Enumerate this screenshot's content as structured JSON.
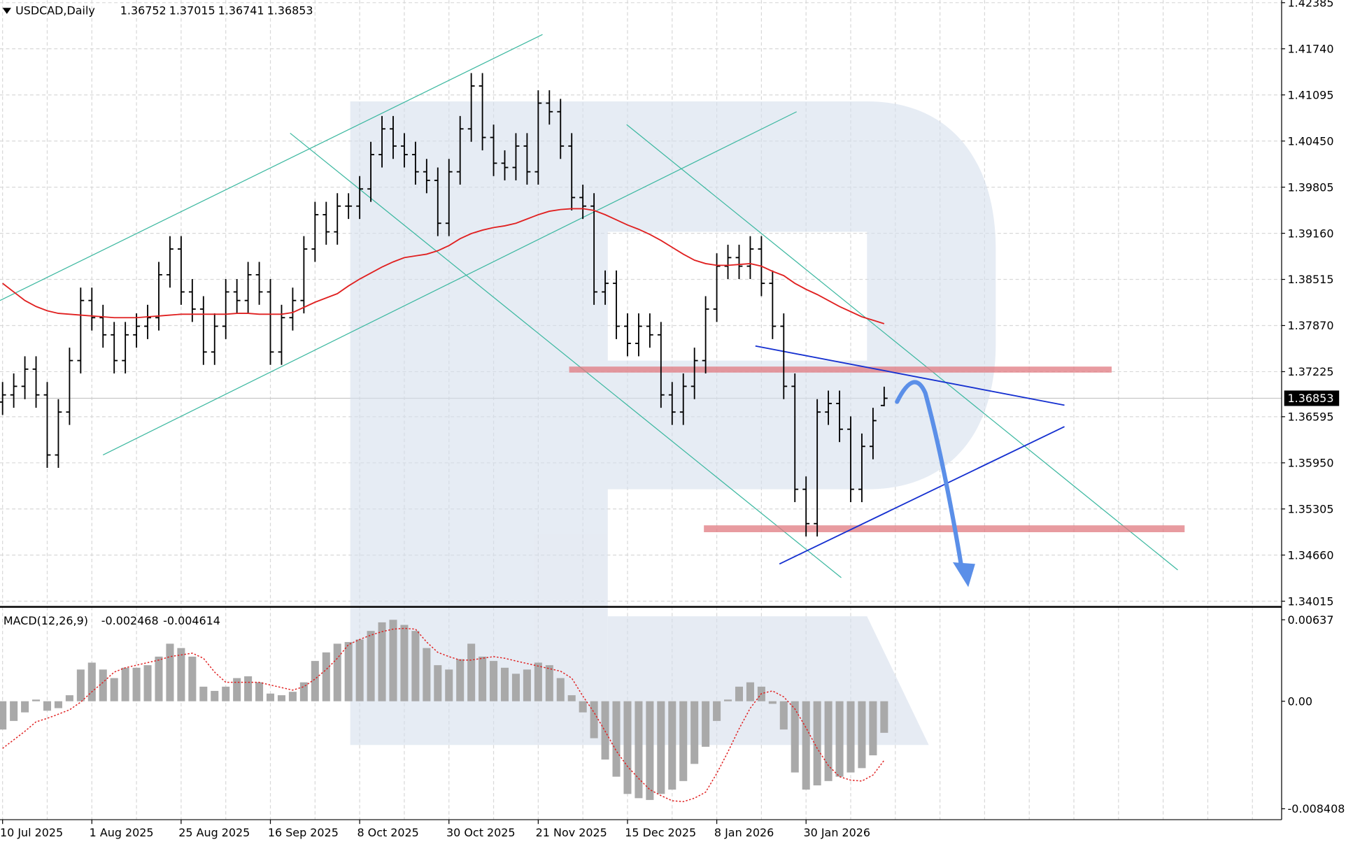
{
  "chart_data": [
    {
      "type": "ohlc",
      "symbol": "USDCAD,Daily",
      "categories": [
        "10 Jul 2025",
        null,
        null,
        null,
        null,
        null,
        null,
        null,
        "1 Aug 2025",
        null,
        null,
        null,
        null,
        null,
        null,
        null,
        "25 Aug 2025",
        null,
        null,
        null,
        null,
        null,
        null,
        null,
        "16 Sep 2025",
        null,
        null,
        null,
        null,
        null,
        null,
        null,
        "8 Oct 2025",
        null,
        null,
        null,
        null,
        null,
        null,
        null,
        "30 Oct 2025",
        null,
        null,
        null,
        null,
        null,
        null,
        null,
        "21 Nov 2025",
        null,
        null,
        null,
        null,
        null,
        null,
        null,
        "15 Dec 2025",
        null,
        null,
        null,
        null,
        null,
        null,
        null,
        "8 Jan 2026",
        null,
        null,
        null,
        null,
        null,
        null,
        null,
        "30 Jan 2026",
        null,
        null,
        null,
        null,
        null,
        null,
        null
      ],
      "open": [
        1.368,
        1.369,
        1.3702,
        1.3726,
        1.369,
        1.3606,
        1.3666,
        1.3738,
        1.3822,
        1.3798,
        1.3774,
        1.3738,
        1.3774,
        1.3786,
        1.3798,
        1.3858,
        1.3894,
        1.3834,
        1.381,
        1.375,
        1.3786,
        1.3834,
        1.3822,
        1.3858,
        1.3834,
        1.375,
        1.3798,
        1.3822,
        1.3894,
        1.3942,
        1.3918,
        1.3954,
        1.3954,
        1.3978,
        1.4026,
        1.4062,
        1.4038,
        1.4026,
        1.4002,
        1.399,
        1.393,
        1.4002,
        1.4062,
        1.4122,
        1.405,
        1.4014,
        1.4008,
        1.4038,
        1.4002,
        1.4098,
        1.4086,
        1.4038,
        1.3966,
        1.3954,
        1.3834,
        1.3846,
        1.3786,
        1.3762,
        1.3786,
        1.3774,
        1.369,
        1.3666,
        1.3702,
        1.3738,
        1.381,
        1.387,
        1.3882,
        1.387,
        1.3894,
        1.3846,
        1.3786,
        1.3702,
        1.3558,
        1.351,
        1.3666,
        1.3678,
        1.3642,
        1.3558,
        1.3618,
        1.36752
      ],
      "high": [
        1.3708,
        1.372,
        1.3744,
        1.3744,
        1.3708,
        1.3684,
        1.3756,
        1.384,
        1.384,
        1.3816,
        1.3792,
        1.3792,
        1.3804,
        1.3816,
        1.3876,
        1.3912,
        1.3912,
        1.3852,
        1.3828,
        1.3804,
        1.3852,
        1.3852,
        1.3876,
        1.3876,
        1.3852,
        1.3816,
        1.384,
        1.3912,
        1.396,
        1.396,
        1.3972,
        1.3972,
        1.3996,
        1.4044,
        1.408,
        1.408,
        1.4056,
        1.4044,
        1.402,
        1.4008,
        1.402,
        1.408,
        1.414,
        1.414,
        1.4068,
        1.4032,
        1.4056,
        1.4056,
        1.4116,
        1.4116,
        1.4104,
        1.4056,
        1.3984,
        1.3972,
        1.3864,
        1.3864,
        1.3804,
        1.3804,
        1.3804,
        1.3792,
        1.3708,
        1.372,
        1.3756,
        1.3828,
        1.3888,
        1.39,
        1.39,
        1.3912,
        1.3912,
        1.3864,
        1.3804,
        1.372,
        1.3576,
        1.3684,
        1.3696,
        1.3696,
        1.366,
        1.3636,
        1.3672,
        1.37015
      ],
      "low": [
        1.3662,
        1.3672,
        1.3684,
        1.3672,
        1.3588,
        1.3588,
        1.3648,
        1.372,
        1.378,
        1.3756,
        1.372,
        1.372,
        1.3756,
        1.3768,
        1.378,
        1.384,
        1.3816,
        1.3792,
        1.3732,
        1.3732,
        1.3768,
        1.3804,
        1.3804,
        1.3816,
        1.3732,
        1.3732,
        1.378,
        1.3804,
        1.3876,
        1.39,
        1.39,
        1.3936,
        1.3936,
        1.396,
        1.4008,
        1.402,
        1.4008,
        1.3984,
        1.3972,
        1.3912,
        1.3912,
        1.3984,
        1.4044,
        1.4032,
        1.3996,
        1.399,
        1.399,
        1.3984,
        1.3984,
        1.4068,
        1.402,
        1.3948,
        1.3936,
        1.3816,
        1.3816,
        1.3768,
        1.3744,
        1.3744,
        1.3756,
        1.3672,
        1.3648,
        1.3648,
        1.3684,
        1.372,
        1.3792,
        1.3852,
        1.3852,
        1.3852,
        1.3828,
        1.3768,
        1.3684,
        1.354,
        1.3492,
        1.3492,
        1.3648,
        1.3624,
        1.354,
        1.354,
        1.36,
        1.36741
      ],
      "close": [
        1.369,
        1.3702,
        1.3726,
        1.369,
        1.3606,
        1.3666,
        1.3738,
        1.3822,
        1.3798,
        1.3774,
        1.3738,
        1.3774,
        1.3786,
        1.3798,
        1.3858,
        1.3894,
        1.3834,
        1.381,
        1.375,
        1.3786,
        1.3834,
        1.3822,
        1.3858,
        1.3834,
        1.375,
        1.3798,
        1.3822,
        1.3894,
        1.3942,
        1.3918,
        1.3954,
        1.3954,
        1.3978,
        1.4026,
        1.4062,
        1.4038,
        1.4026,
        1.4002,
        1.399,
        1.393,
        1.4002,
        1.4062,
        1.4122,
        1.405,
        1.4014,
        1.4008,
        1.4038,
        1.4002,
        1.4098,
        1.4086,
        1.4038,
        1.3966,
        1.3954,
        1.3834,
        1.3846,
        1.3786,
        1.3762,
        1.3786,
        1.3774,
        1.369,
        1.3666,
        1.3702,
        1.3738,
        1.381,
        1.387,
        1.3882,
        1.387,
        1.3894,
        1.3846,
        1.3786,
        1.3702,
        1.3558,
        1.351,
        1.3666,
        1.3678,
        1.3642,
        1.3558,
        1.3618,
        1.3654,
        1.36853
      ],
      "color": "#000000",
      "ma": {
        "color": "#e02020",
        "values": [
          1.3846,
          1.3834,
          1.3822,
          1.38136,
          1.38076,
          1.3804,
          1.38028,
          1.38016,
          1.38004,
          1.37992,
          1.3798,
          1.3798,
          1.3798,
          1.37992,
          1.38004,
          1.38016,
          1.38028,
          1.38028,
          1.38028,
          1.38028,
          1.38028,
          1.3804,
          1.3804,
          1.38028,
          1.38028,
          1.38028,
          1.38052,
          1.38124,
          1.38196,
          1.38256,
          1.38316,
          1.38424,
          1.3852,
          1.38604,
          1.38688,
          1.3876,
          1.3882,
          1.38844,
          1.38868,
          1.38916,
          1.38988,
          1.39084,
          1.39156,
          1.39204,
          1.3924,
          1.39264,
          1.393,
          1.3936,
          1.3942,
          1.39468,
          1.39492,
          1.39504,
          1.39504,
          1.3948,
          1.3942,
          1.39348,
          1.39276,
          1.39216,
          1.39144,
          1.3906,
          1.38964,
          1.38868,
          1.38784,
          1.38736,
          1.38712,
          1.38712,
          1.38724,
          1.38736,
          1.387,
          1.38628,
          1.38568,
          1.3846,
          1.38376,
          1.38304,
          1.3822,
          1.38136,
          1.38064,
          1.37992,
          1.37944,
          1.37896
        ]
      },
      "ylim": [
        1.3396,
        1.4242
      ],
      "yticks": [
        1.42385,
        {
          "value": 1.4174,
          "label": "1.41740"
        },
        1.41095,
        {
          "value": 1.4045,
          "label": "1.40450"
        },
        1.39805,
        {
          "value": 1.3916,
          "label": "1.39160"
        },
        1.38515,
        {
          "value": 1.3787,
          "label": "1.37870"
        },
        1.37225,
        1.36595,
        {
          "value": 1.3595,
          "label": "1.35950"
        },
        1.35305,
        {
          "value": 1.3466,
          "label": "1.34660"
        },
        1.34015
      ],
      "grid": true
    },
    {
      "type": "macd",
      "title": "MACD(12,26,9)",
      "histogram": {
        "color": "#a9a9a9",
        "values": [
          -0.00221,
          -0.00154,
          -0.00087,
          0.00013,
          -0.00074,
          -0.00054,
          0.00047,
          0.00248,
          0.00302,
          0.00248,
          0.00181,
          0.00262,
          0.00262,
          0.00282,
          0.00349,
          0.0045,
          0.00416,
          0.00349,
          0.00114,
          0.00081,
          0.00114,
          0.00181,
          0.00195,
          0.00148,
          0.0006,
          0.00047,
          0.00074,
          0.00148,
          0.00315,
          0.00382,
          0.0045,
          0.00463,
          0.00483,
          0.0055,
          0.00617,
          0.00637,
          0.00597,
          0.0055,
          0.00416,
          0.00282,
          0.00248,
          0.00329,
          0.0045,
          0.00349,
          0.00315,
          0.00262,
          0.00215,
          0.00248,
          0.00302,
          0.00282,
          0.00181,
          0.00047,
          -0.00087,
          -0.00289,
          -0.00456,
          -0.0059,
          -0.00725,
          -0.00758,
          -0.00772,
          -0.00725,
          -0.00691,
          -0.00624,
          -0.0049,
          -0.00356,
          -0.00154,
          0.00013,
          0.00114,
          0.00148,
          0.00114,
          -0.0002,
          -0.00221,
          -0.00557,
          -0.00691,
          -0.00658,
          -0.00624,
          -0.0059,
          -0.00557,
          -0.00523,
          -0.00423,
          -0.002468
        ]
      },
      "signal": {
        "color": "#e02020",
        "values": [
          -0.00369,
          -0.00302,
          -0.00235,
          -0.00161,
          -0.00134,
          -0.00101,
          -0.00067,
          -7e-05,
          0.00074,
          0.00148,
          0.00228,
          0.00262,
          0.00282,
          0.00302,
          0.00322,
          0.00349,
          0.00362,
          0.00376,
          0.00336,
          0.00228,
          0.00148,
          0.00148,
          0.00148,
          0.00148,
          0.00127,
          0.00107,
          0.00087,
          0.00114,
          0.00174,
          0.00248,
          0.00336,
          0.00443,
          0.00483,
          0.00517,
          0.00544,
          0.00564,
          0.0057,
          0.00564,
          0.00463,
          0.00382,
          0.00349,
          0.00322,
          0.00322,
          0.00336,
          0.00349,
          0.00336,
          0.00315,
          0.00295,
          0.00275,
          0.00255,
          0.00235,
          0.00181,
          0.0004,
          -0.00087,
          -0.00235,
          -0.00389,
          -0.0051,
          -0.00604,
          -0.00691,
          -0.00738,
          -0.00778,
          -0.00785,
          -0.00758,
          -0.00711,
          -0.00564,
          -0.00396,
          -0.00215,
          -0.00054,
          0.0006,
          0.00081,
          0.00034,
          -0.0006,
          -0.00208,
          -0.00369,
          -0.00503,
          -0.0059,
          -0.00617,
          -0.00624,
          -0.00577,
          -0.004614
        ]
      },
      "ylim": [
        -0.00926,
        0.00718
      ],
      "yticks": [
        0.00637,
        {
          "value": 0,
          "label": "0.00"
        },
        -0.008408
      ]
    }
  ]
}
